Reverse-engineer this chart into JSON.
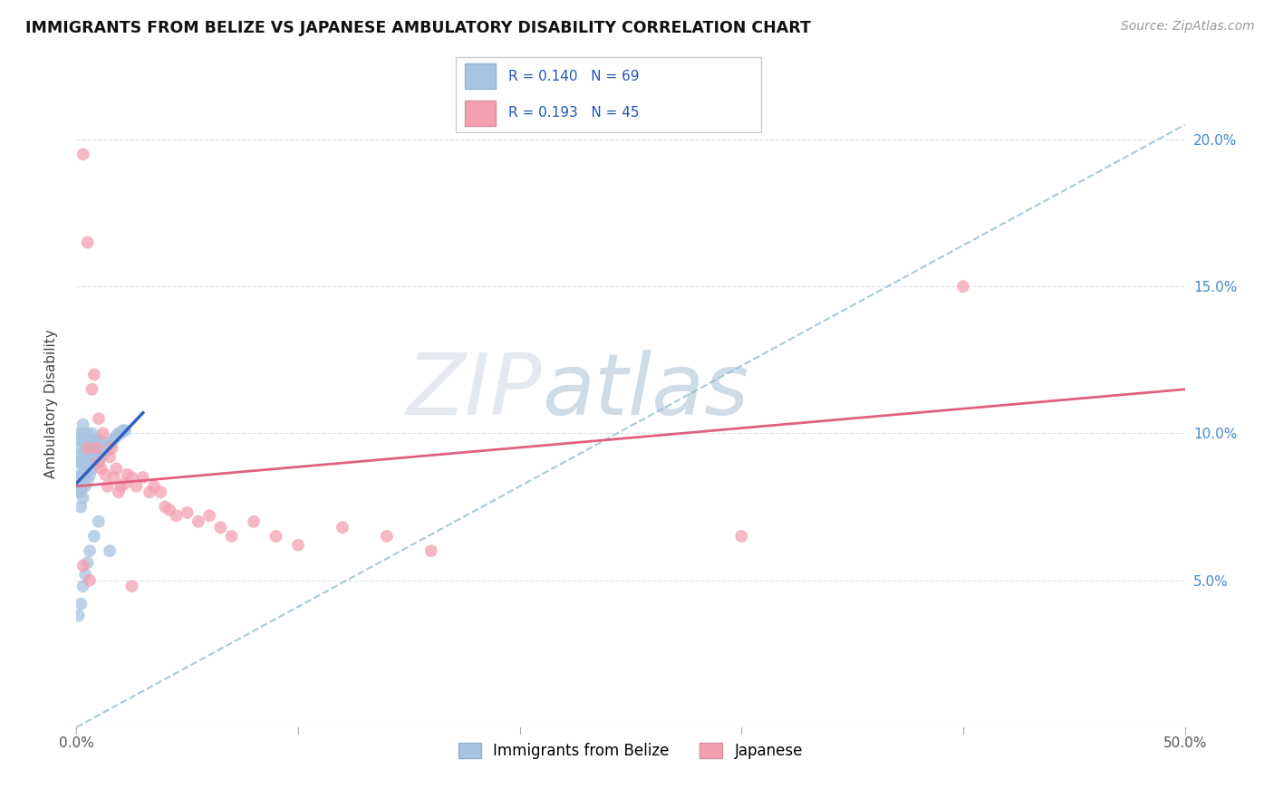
{
  "title": "IMMIGRANTS FROM BELIZE VS JAPANESE AMBULATORY DISABILITY CORRELATION CHART",
  "source": "Source: ZipAtlas.com",
  "ylabel": "Ambulatory Disability",
  "xmin": 0.0,
  "xmax": 0.5,
  "ymin": 0.0,
  "ymax": 0.22,
  "belize_R": 0.14,
  "belize_N": 69,
  "japanese_R": 0.193,
  "japanese_N": 45,
  "belize_color": "#a8c4e0",
  "japanese_color": "#f4a0b0",
  "belize_trend_color": "#3060c0",
  "japanese_trend_color": "#e06080",
  "dashed_line_color": "#90bcd0",
  "watermark_zip_color": "#c0cdd8",
  "watermark_atlas_color": "#a8bcc8",
  "belize_x": [
    0.001,
    0.001,
    0.001,
    0.001,
    0.001,
    0.002,
    0.002,
    0.002,
    0.002,
    0.002,
    0.002,
    0.002,
    0.003,
    0.003,
    0.003,
    0.003,
    0.003,
    0.003,
    0.003,
    0.003,
    0.004,
    0.004,
    0.004,
    0.004,
    0.004,
    0.005,
    0.005,
    0.005,
    0.005,
    0.005,
    0.006,
    0.006,
    0.006,
    0.006,
    0.007,
    0.007,
    0.007,
    0.007,
    0.008,
    0.008,
    0.008,
    0.009,
    0.009,
    0.01,
    0.01,
    0.01,
    0.011,
    0.011,
    0.012,
    0.012,
    0.013,
    0.014,
    0.015,
    0.016,
    0.017,
    0.018,
    0.019,
    0.02,
    0.021,
    0.022,
    0.001,
    0.002,
    0.003,
    0.004,
    0.005,
    0.006,
    0.008,
    0.01,
    0.015
  ],
  "belize_y": [
    0.08,
    0.085,
    0.09,
    0.095,
    0.1,
    0.075,
    0.08,
    0.082,
    0.086,
    0.09,
    0.093,
    0.098,
    0.078,
    0.082,
    0.086,
    0.09,
    0.093,
    0.097,
    0.1,
    0.103,
    0.082,
    0.086,
    0.09,
    0.094,
    0.098,
    0.084,
    0.088,
    0.092,
    0.096,
    0.1,
    0.086,
    0.09,
    0.094,
    0.098,
    0.088,
    0.092,
    0.096,
    0.1,
    0.09,
    0.094,
    0.098,
    0.092,
    0.096,
    0.09,
    0.094,
    0.098,
    0.092,
    0.096,
    0.093,
    0.097,
    0.094,
    0.095,
    0.096,
    0.097,
    0.098,
    0.099,
    0.1,
    0.1,
    0.101,
    0.101,
    0.038,
    0.042,
    0.048,
    0.052,
    0.056,
    0.06,
    0.065,
    0.07,
    0.06
  ],
  "japanese_x": [
    0.003,
    0.005,
    0.005,
    0.007,
    0.008,
    0.009,
    0.01,
    0.01,
    0.011,
    0.012,
    0.013,
    0.014,
    0.015,
    0.016,
    0.017,
    0.018,
    0.019,
    0.02,
    0.022,
    0.023,
    0.025,
    0.027,
    0.03,
    0.033,
    0.035,
    0.038,
    0.04,
    0.042,
    0.045,
    0.05,
    0.055,
    0.06,
    0.065,
    0.07,
    0.08,
    0.09,
    0.1,
    0.12,
    0.14,
    0.16,
    0.003,
    0.006,
    0.025,
    0.3,
    0.4
  ],
  "japanese_y": [
    0.195,
    0.165,
    0.095,
    0.115,
    0.12,
    0.095,
    0.105,
    0.09,
    0.088,
    0.1,
    0.086,
    0.082,
    0.092,
    0.095,
    0.085,
    0.088,
    0.08,
    0.082,
    0.083,
    0.086,
    0.085,
    0.082,
    0.085,
    0.08,
    0.082,
    0.08,
    0.075,
    0.074,
    0.072,
    0.073,
    0.07,
    0.072,
    0.068,
    0.065,
    0.07,
    0.065,
    0.062,
    0.068,
    0.065,
    0.06,
    0.055,
    0.05,
    0.048,
    0.065,
    0.15
  ],
  "yticks": [
    0.0,
    0.05,
    0.1,
    0.15,
    0.2
  ],
  "ytick_labels_right": [
    "",
    "5.0%",
    "10.0%",
    "15.0%",
    "20.0%"
  ],
  "xticks": [
    0.0,
    0.1,
    0.2,
    0.3,
    0.4,
    0.5
  ],
  "xtick_labels": [
    "0.0%",
    "",
    "",
    "",
    "",
    "50.0%"
  ]
}
